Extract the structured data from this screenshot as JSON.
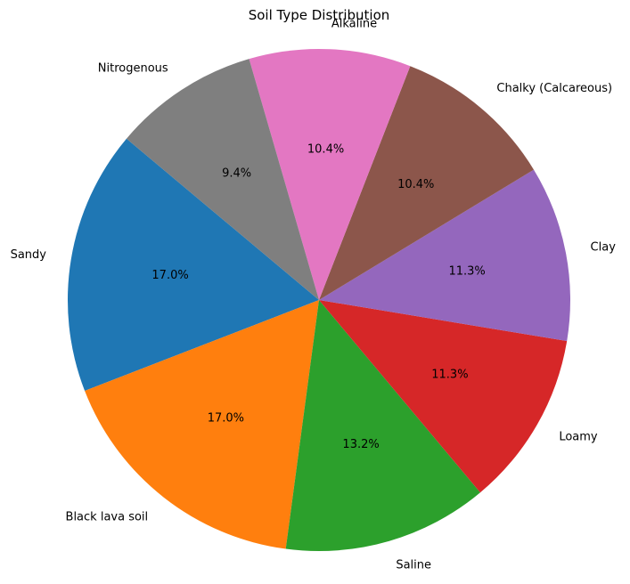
{
  "chart_data": {
    "type": "pie",
    "title": "Soil Type Distribution",
    "start_angle_deg": 140,
    "direction": "counterclockwise",
    "categories": [
      "Sandy",
      "Black lava soil",
      "Saline",
      "Loamy",
      "Clay",
      "Chalky (Calcareous)",
      "Alkaline",
      "Nitrogenous"
    ],
    "values": [
      17.0,
      17.0,
      13.2,
      11.3,
      11.3,
      10.4,
      10.4,
      9.4
    ],
    "percent_labels": [
      "17.0%",
      "17.0%",
      "13.2%",
      "11.3%",
      "11.3%",
      "10.4%",
      "10.4%",
      "9.4%"
    ],
    "colors": [
      "#1f77b4",
      "#ff7f0e",
      "#2ca02c",
      "#d62728",
      "#9467bd",
      "#8c564b",
      "#e377c2",
      "#7f7f7f"
    ]
  }
}
